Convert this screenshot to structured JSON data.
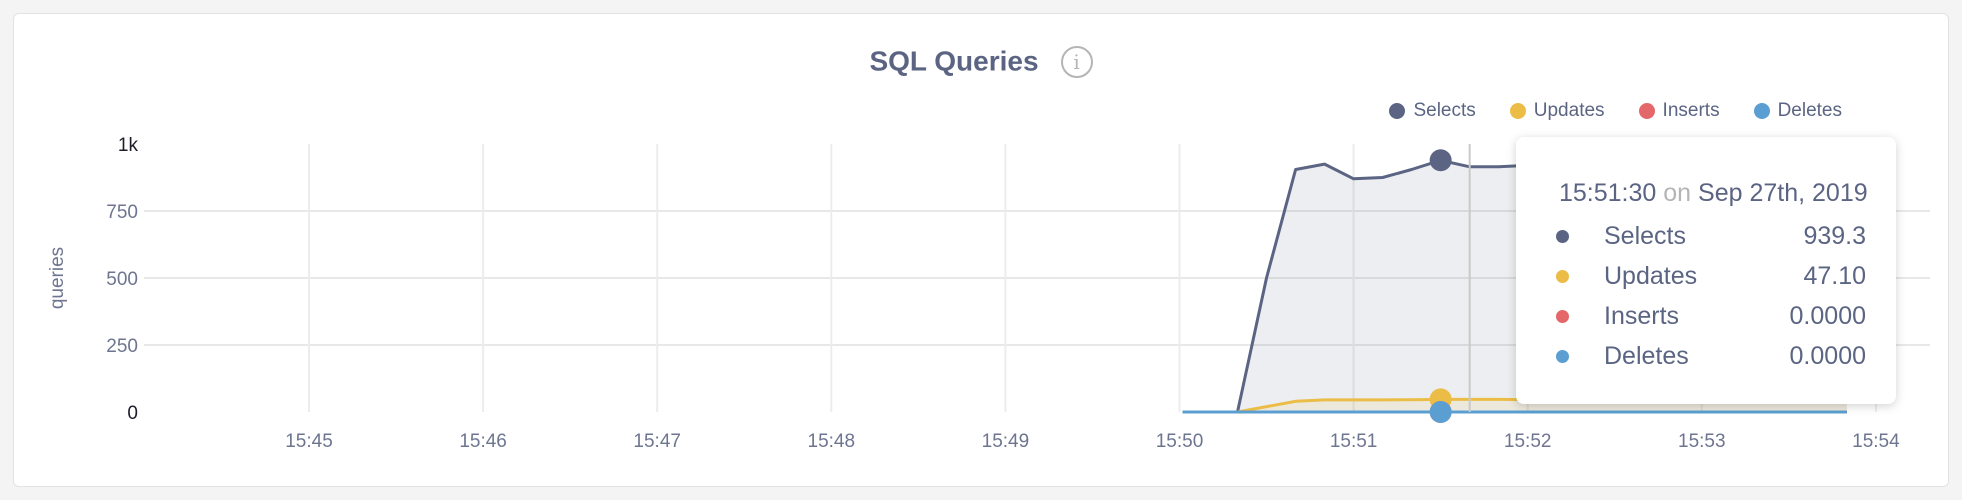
{
  "header": {
    "title": "SQL Queries",
    "info_icon": "info-icon",
    "info_glyph": "i"
  },
  "legend": [
    {
      "name": "Selects",
      "color": "#5b6583"
    },
    {
      "name": "Updates",
      "color": "#ebbd47"
    },
    {
      "name": "Inserts",
      "color": "#e4686a"
    },
    {
      "name": "Deletes",
      "color": "#5b9fd2"
    }
  ],
  "tooltip": {
    "time": "15:51:30",
    "on": "on",
    "date": "Sep 27th, 2019",
    "rows": [
      {
        "name": "Selects",
        "value": "939.3",
        "color": "#5b6583"
      },
      {
        "name": "Updates",
        "value": "47.10",
        "color": "#ebbd47"
      },
      {
        "name": "Inserts",
        "value": "0.0000",
        "color": "#e4686a"
      },
      {
        "name": "Deletes",
        "value": "0.0000",
        "color": "#5b9fd2"
      }
    ]
  },
  "chart_data": {
    "type": "area",
    "title": "SQL Queries",
    "ylabel": "queries",
    "xlabel": "",
    "ylim": [
      0,
      1000
    ],
    "yticks": [
      {
        "value": 0,
        "label": "0"
      },
      {
        "value": 250,
        "label": "250"
      },
      {
        "value": 500,
        "label": "500"
      },
      {
        "value": 750,
        "label": "750"
      },
      {
        "value": 1000,
        "label": "1k"
      }
    ],
    "xticks": [
      "15:45",
      "15:46",
      "15:47",
      "15:48",
      "15:49",
      "15:50",
      "15:51",
      "15:52",
      "15:53",
      "15:54"
    ],
    "grid": true,
    "legend_position": "top-right",
    "x": [
      "15:50:10",
      "15:50:20",
      "15:50:30",
      "15:50:40",
      "15:50:50",
      "15:51:00",
      "15:51:10",
      "15:51:20",
      "15:51:30",
      "15:51:40",
      "15:51:50",
      "15:52:00",
      "15:52:10",
      "15:52:20",
      "15:52:30",
      "15:52:40",
      "15:52:50",
      "15:53:00",
      "15:53:10",
      "15:53:20",
      "15:53:30",
      "15:53:40",
      "15:53:50"
    ],
    "series": [
      {
        "name": "Selects",
        "color": "#5b6583",
        "values": [
          0,
          0,
          500,
          905,
          925,
          870,
          875,
          905,
          939.3,
          915,
          915,
          920,
          910,
          895,
          870,
          895,
          905,
          880,
          905,
          915,
          925,
          920,
          920
        ]
      },
      {
        "name": "Updates",
        "color": "#ebbd47",
        "values": [
          0,
          0,
          20,
          40,
          45,
          45,
          45,
          46,
          47.1,
          47,
          47,
          46,
          45,
          45,
          45,
          45,
          45,
          45,
          45,
          45,
          45,
          45,
          45
        ]
      },
      {
        "name": "Inserts",
        "color": "#e4686a",
        "values": [
          0,
          0,
          0,
          0,
          0,
          0,
          0,
          0,
          0,
          0,
          0,
          0,
          0,
          0,
          0,
          0,
          0,
          0,
          0,
          0,
          0,
          0,
          0
        ]
      },
      {
        "name": "Deletes",
        "color": "#5b9fd2",
        "values": [
          0,
          0,
          0,
          0,
          0,
          0,
          0,
          0,
          0,
          0,
          0,
          0,
          0,
          0,
          0,
          0,
          0,
          0,
          0,
          0,
          0,
          0,
          0
        ]
      }
    ],
    "hover": {
      "x": "15:51:30",
      "cursor": "15:51:40"
    }
  }
}
